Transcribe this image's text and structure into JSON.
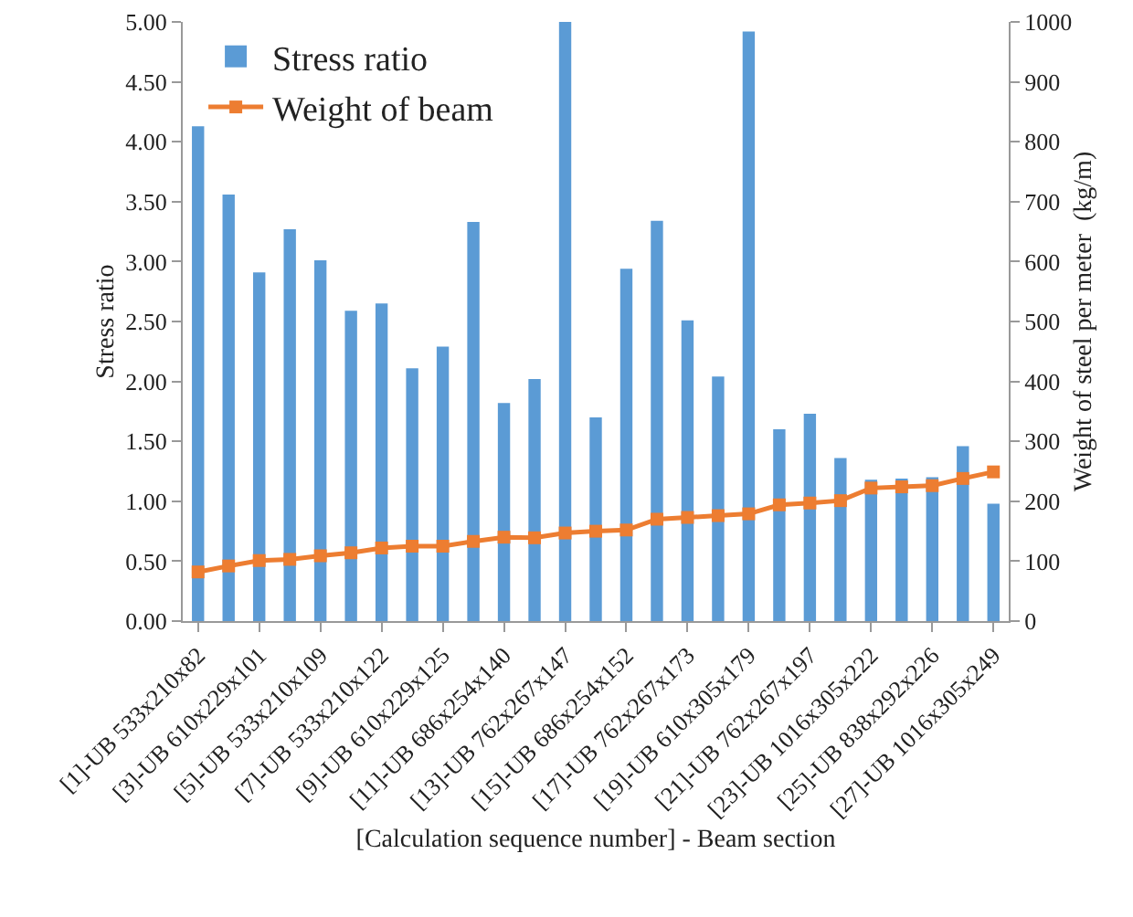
{
  "chart_data": {
    "type": "bar",
    "xlabel": "[Calculation sequence number] - Beam section",
    "ylabel": "Stress ratio",
    "y2label": "Weight of steel per meter  (kg/m)",
    "categories": [
      "[1]-UB 533x210x82",
      null,
      "[3]-UB 610x229x101",
      null,
      "[5]-UB 533x210x109",
      null,
      "[7]-UB 533x210x122",
      null,
      "[9]-UB 610x229x125",
      null,
      "[11]-UB 686x254x140",
      null,
      "[13]-UB 762x267x147",
      null,
      "[15]-UB 686x254x152",
      null,
      "[17]-UB 762x267x173",
      null,
      "[19]-UB 610x305x179",
      null,
      "[21]-UB 762x267x197",
      null,
      "[23]-UB 1016x305x222",
      null,
      "[25]-UB 838x292x226",
      null,
      "[27]-UB 1016x305x249"
    ],
    "series": [
      {
        "name": "Stress ratio",
        "color": "#5b9bd5",
        "values": [
          4.13,
          3.56,
          2.91,
          3.27,
          3.01,
          2.59,
          2.65,
          2.11,
          2.29,
          3.33,
          1.82,
          2.02,
          5.0,
          1.7,
          2.94,
          3.34,
          2.51,
          2.04,
          4.92,
          1.6,
          1.73,
          1.36,
          1.18,
          1.19,
          1.2,
          1.46,
          0.98
        ]
      },
      {
        "name": "Weight of beam",
        "type": "line",
        "axis": "y2",
        "color": "#ed7d31",
        "marker": "square",
        "values": [
          82,
          92,
          101,
          103,
          109,
          114,
          122,
          125,
          125,
          133,
          140,
          139,
          147,
          150,
          152,
          170,
          173,
          176,
          179,
          194,
          197,
          201,
          222,
          224,
          226,
          238,
          249
        ]
      }
    ],
    "ylim": [
      0,
      5
    ],
    "yticks": [
      {
        "value": 0,
        "label": "0.00"
      },
      {
        "value": 0.5,
        "label": "0.50"
      },
      {
        "value": 1,
        "label": "1.00"
      },
      {
        "value": 1.5,
        "label": "1.50"
      },
      {
        "value": 2,
        "label": "2.00"
      },
      {
        "value": 2.5,
        "label": "2.50"
      },
      {
        "value": 3,
        "label": "3.00"
      },
      {
        "value": 3.5,
        "label": "3.50"
      },
      {
        "value": 4,
        "label": "4.00"
      },
      {
        "value": 4.5,
        "label": "4.50"
      },
      {
        "value": 5,
        "label": "5.00"
      }
    ],
    "y2lim": [
      0,
      1000
    ],
    "y2ticks": [
      0,
      100,
      200,
      300,
      400,
      500,
      600,
      700,
      800,
      900,
      1000
    ],
    "grid": false,
    "legend": "top left"
  }
}
